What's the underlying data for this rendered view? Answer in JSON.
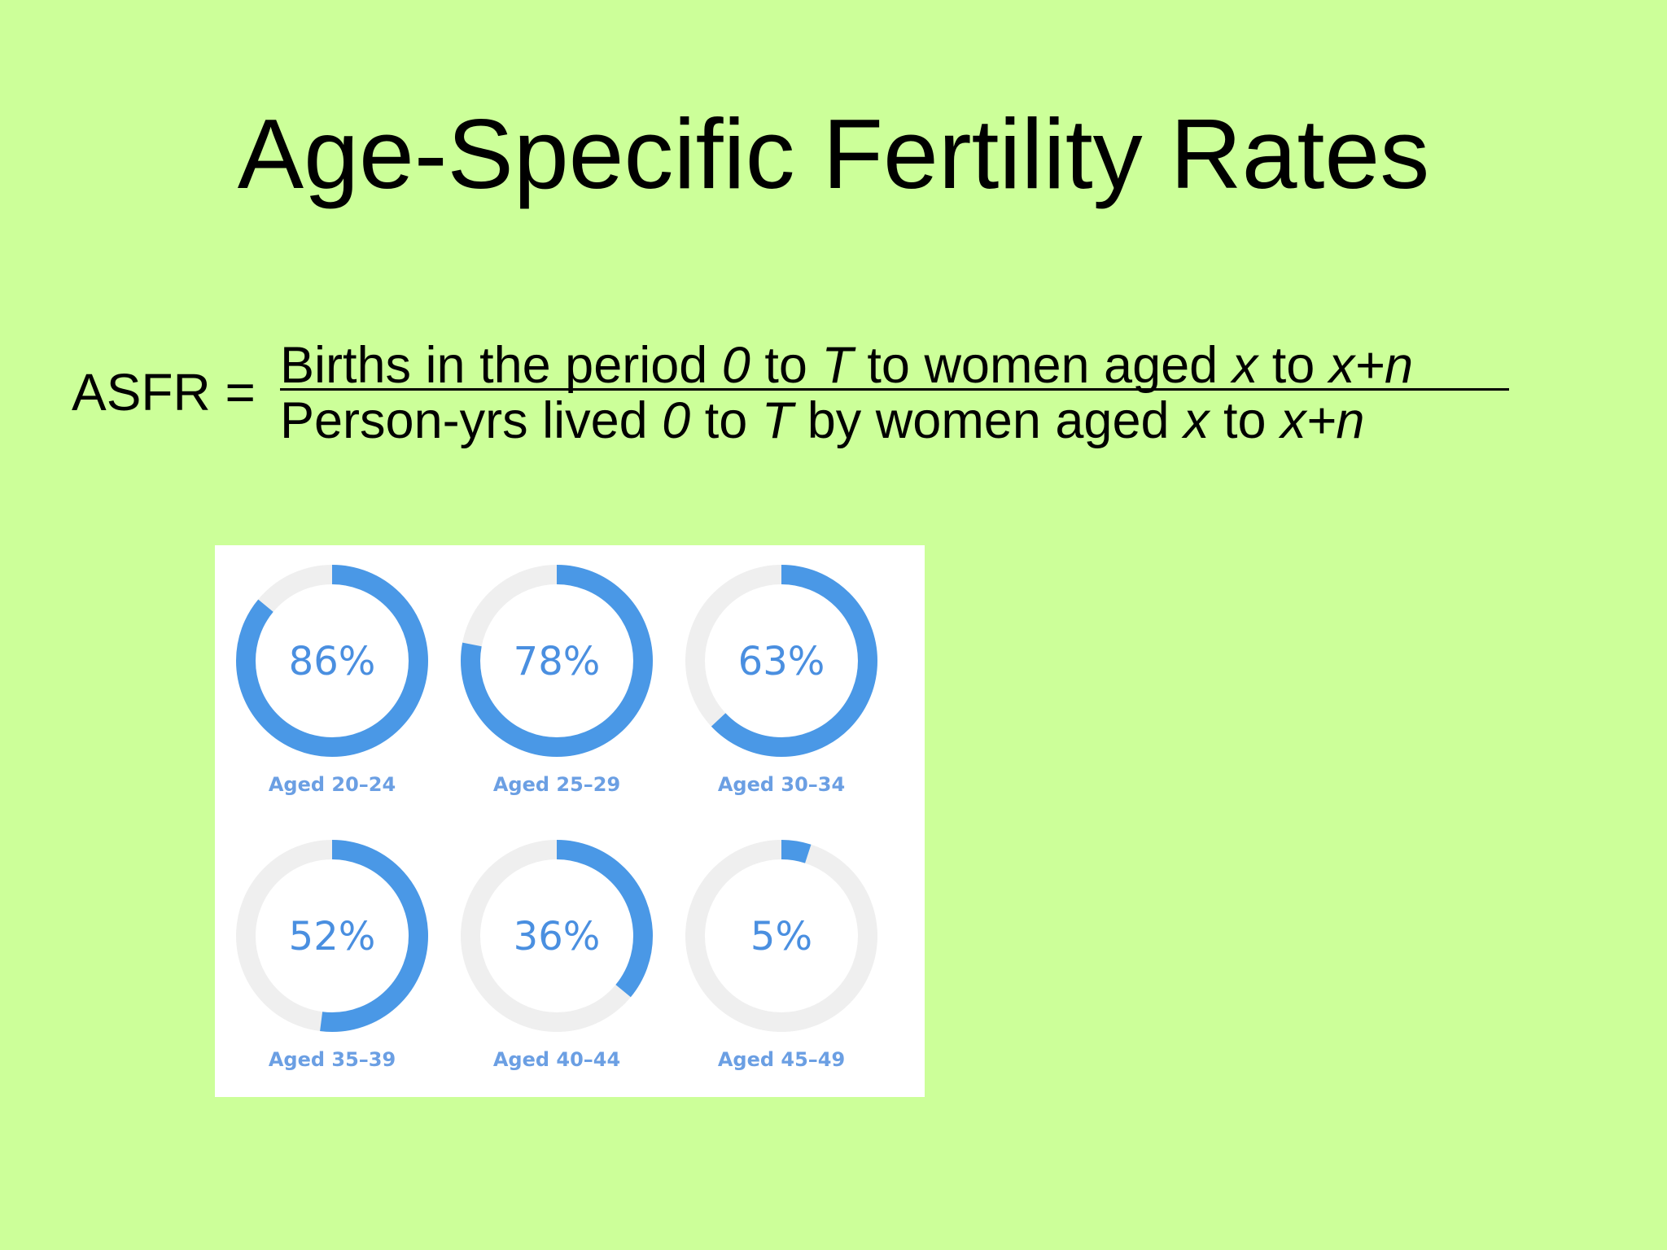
{
  "title": "Age-Specific Fertility Rates",
  "formula": {
    "lhs": "ASFR =",
    "numerator": [
      {
        "t": "Births in the period ",
        "i": false
      },
      {
        "t": "0",
        "i": true
      },
      {
        "t": " to ",
        "i": false
      },
      {
        "t": "T",
        "i": true
      },
      {
        "t": " to women aged ",
        "i": false
      },
      {
        "t": "x",
        "i": true
      },
      {
        "t": " to ",
        "i": false
      },
      {
        "t": "x+n",
        "i": true
      }
    ],
    "denominator": [
      {
        "t": "Person-yrs lived ",
        "i": false
      },
      {
        "t": "0",
        "i": true
      },
      {
        "t": " to ",
        "i": false
      },
      {
        "t": "T",
        "i": true
      },
      {
        "t": " by women aged ",
        "i": false
      },
      {
        "t": "x",
        "i": true
      },
      {
        "t": " to ",
        "i": false
      },
      {
        "t": "x+n",
        "i": true
      }
    ]
  },
  "colors": {
    "background": "#ccff99",
    "ring_fill": "#4a98e6",
    "ring_track": "#efefef"
  },
  "chart_data": {
    "type": "donut-grid",
    "categories": [
      "Aged 20–24",
      "Aged 25–29",
      "Aged 30–34",
      "Aged 35–39",
      "Aged 40–44",
      "Aged 45–49"
    ],
    "values": [
      86,
      78,
      63,
      52,
      36,
      5
    ],
    "value_labels": [
      "86%",
      "78%",
      "63%",
      "52%",
      "36%",
      "5%"
    ],
    "unit": "%",
    "max": 100
  }
}
